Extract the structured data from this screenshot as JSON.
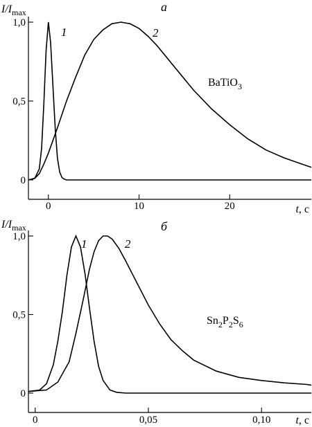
{
  "chart_data": [
    {
      "type": "line",
      "panel_label": "а",
      "ylabel": {
        "italic": "I/I",
        "sub": "max"
      },
      "xlabel": {
        "italic": "t",
        "unit": ", с"
      },
      "annotation": {
        "base": "BaTiO",
        "sub": "3"
      },
      "xlim": [
        -2.2,
        29
      ],
      "ylim": [
        0,
        1
      ],
      "x_ticks": [
        0,
        10,
        20
      ],
      "x_tick_labels": [
        "0",
        "10",
        "20"
      ],
      "y_ticks": [
        0,
        0.5,
        1.0
      ],
      "y_tick_labels": [
        "0",
        "0,5",
        "1,0"
      ],
      "series": [
        {
          "name": "1",
          "x": [
            -2.2,
            -1.5,
            -1.0,
            -0.75,
            -0.5,
            -0.25,
            0,
            0.25,
            0.5,
            0.75,
            1.0,
            1.25,
            1.5,
            1.75,
            2.0,
            2.5,
            3.0,
            29
          ],
          "y": [
            0.0,
            0.01,
            0.07,
            0.2,
            0.48,
            0.82,
            1.0,
            0.87,
            0.6,
            0.33,
            0.14,
            0.05,
            0.015,
            0.005,
            0.0,
            0.0,
            0.0,
            0.0
          ]
        },
        {
          "name": "2",
          "x": [
            -2.2,
            -1.5,
            -1.0,
            -0.5,
            0,
            1,
            2,
            3,
            4,
            5,
            6,
            7,
            8,
            9,
            10,
            11,
            12,
            14,
            16,
            18,
            20,
            22,
            24,
            26,
            28,
            29
          ],
          "y": [
            0.0,
            0.01,
            0.04,
            0.1,
            0.17,
            0.33,
            0.5,
            0.65,
            0.79,
            0.89,
            0.95,
            0.99,
            1.0,
            0.99,
            0.96,
            0.91,
            0.85,
            0.71,
            0.57,
            0.45,
            0.35,
            0.26,
            0.19,
            0.14,
            0.1,
            0.08
          ]
        }
      ]
    },
    {
      "type": "line",
      "panel_label": "б",
      "ylabel": {
        "italic": "I/I",
        "sub": "max"
      },
      "xlabel": {
        "italic": "t",
        "unit": ", с"
      },
      "annotation": {
        "base": "Sn",
        "parts": [
          [
            "2",
            "P"
          ],
          [
            "2",
            "S"
          ],
          [
            "6",
            ""
          ]
        ]
      },
      "xlim": [
        -0.003,
        0.122
      ],
      "ylim": [
        0,
        1
      ],
      "x_ticks": [
        0,
        0.05,
        0.1
      ],
      "x_tick_labels": [
        "0",
        "0,05",
        "0,10"
      ],
      "y_ticks": [
        0,
        0.5,
        1.0
      ],
      "y_tick_labels": [
        "0",
        "0,5",
        "1,0"
      ],
      "series": [
        {
          "name": "1",
          "x": [
            -0.003,
            0.002,
            0.005,
            0.008,
            0.01,
            0.012,
            0.014,
            0.016,
            0.018,
            0.02,
            0.022,
            0.024,
            0.026,
            0.028,
            0.03,
            0.033,
            0.036,
            0.04,
            0.122
          ],
          "y": [
            0.01,
            0.02,
            0.06,
            0.18,
            0.33,
            0.52,
            0.75,
            0.93,
            1.0,
            0.93,
            0.76,
            0.54,
            0.33,
            0.17,
            0.08,
            0.02,
            0.005,
            0.0,
            0.0
          ]
        },
        {
          "name": "2",
          "x": [
            -0.003,
            0.005,
            0.01,
            0.015,
            0.018,
            0.021,
            0.024,
            0.026,
            0.028,
            0.03,
            0.032,
            0.034,
            0.037,
            0.04,
            0.045,
            0.05,
            0.055,
            0.06,
            0.065,
            0.07,
            0.08,
            0.09,
            0.1,
            0.11,
            0.12,
            0.122
          ],
          "y": [
            0.01,
            0.02,
            0.07,
            0.2,
            0.38,
            0.58,
            0.79,
            0.9,
            0.97,
            1.0,
            1.0,
            0.98,
            0.92,
            0.84,
            0.7,
            0.56,
            0.44,
            0.34,
            0.27,
            0.21,
            0.14,
            0.1,
            0.08,
            0.065,
            0.055,
            0.05
          ]
        }
      ]
    }
  ]
}
